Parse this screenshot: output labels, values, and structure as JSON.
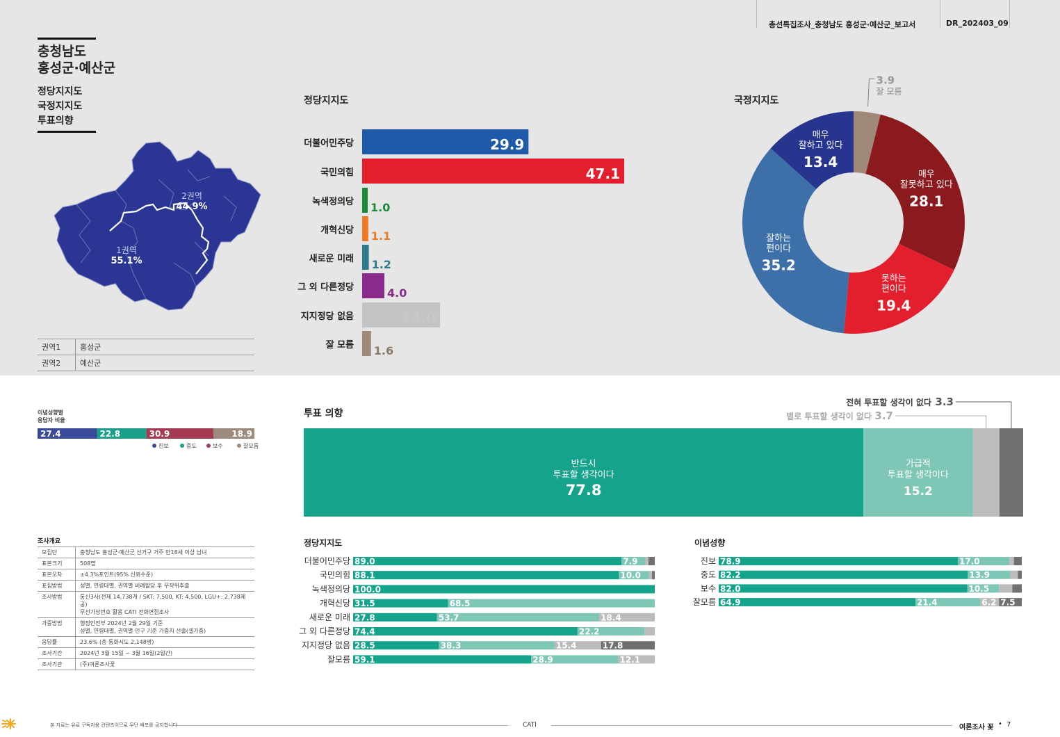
{
  "header": {
    "report_title": "총선특집조사_충청남도 홍성군·예산군_보고서",
    "report_code": "DR_202403_09"
  },
  "page_title": {
    "line1": "충청남도",
    "line2": "홍성군·예산군",
    "sub1": "정당지지도",
    "sub2": "국정지지도",
    "sub3": "투표의향"
  },
  "map": {
    "region1_label": "1권역",
    "region1_value": "55.1%",
    "region2_label": "2권역",
    "region2_value": "44.9%",
    "fill_color": "#2b3593",
    "table": [
      {
        "key": "권역1",
        "value": "홍성군"
      },
      {
        "key": "권역2",
        "value": "예산군"
      }
    ]
  },
  "ideology_ratio": {
    "title_line1": "이념성향별",
    "title_line2": "응답자 비율",
    "segments": [
      {
        "name": "진보",
        "value": 27.4,
        "label": "27.4",
        "color": "#3a4a9a"
      },
      {
        "name": "중도",
        "value": 22.8,
        "label": "22.8",
        "color": "#1aa08a"
      },
      {
        "name": "보수",
        "value": 30.9,
        "label": "30.9",
        "color": "#a33a52"
      },
      {
        "name": "잘모름",
        "value": 18.9,
        "label": "18.9",
        "color": "#9c8a7c"
      }
    ]
  },
  "survey": {
    "title": "조사개요",
    "rows": [
      {
        "key": "모집단",
        "value": "충청남도 홍성군·예산군 선거구 거주 만18세 이상 남녀"
      },
      {
        "key": "표본크기",
        "value": "508명"
      },
      {
        "key": "표본오차",
        "value": "±4.3%포인트(95% 신뢰수준)"
      },
      {
        "key": "표집방법",
        "value": "성별, 연령대별, 권역별 비례할당 후 무작위추출"
      },
      {
        "key": "조사방법",
        "value": "통신3사(전체 14,738개 / SKT: 7,500, KT: 4,500, LGU+: 2,738제공)",
        "value2": "무선가상번호 활용 CATI 전화면접조사"
      },
      {
        "key": "가중방법",
        "value": "행정안전부 2024년 2월 29일 기준",
        "value2": "성별, 연령대별, 권역별 인구 기준 가중치 산출(셀가중)"
      },
      {
        "key": "응답률",
        "value": "23.6% (총 통화시도 2,148명)"
      },
      {
        "key": "조사기간",
        "value": "2024년 3월 15일 ~ 3월 16일(2일간)"
      },
      {
        "key": "조사기관",
        "value": "(주)여론조사꽃"
      }
    ]
  },
  "footer": {
    "notice": "본 자료는 유료 구독자용 컨텐츠이므로 무단 배포를 금지합니다",
    "method": "CATI",
    "brand": "여론조사 꽃",
    "page": "7"
  },
  "chart_data": [
    {
      "type": "bar",
      "orientation": "horizontal",
      "title": "정당지지도",
      "categories": [
        "더불어민주당",
        "국민의힘",
        "녹색정의당",
        "개혁신당",
        "새로운 미래",
        "그 외 다른정당",
        "지지정당 없음",
        "잘 모름"
      ],
      "values": [
        29.9,
        47.1,
        1.0,
        1.1,
        1.2,
        4.0,
        14.0,
        1.6
      ],
      "labels": [
        "29.9",
        "47.1",
        "1.0",
        "1.1",
        "1.2",
        "4.0",
        "14.0",
        "1.6"
      ],
      "colors": [
        "#1e5aa8",
        "#e31e2d",
        "#1a8a3a",
        "#f07a22",
        "#2f7a8a",
        "#8a2a8a",
        "#c4c4c4",
        "#9c8a7c"
      ],
      "label_colors": [
        "#ffffff",
        "#ffffff",
        "#1a8a3a",
        "#f07a22",
        "#2f7a8a",
        "#8a2a8a",
        "#c8c8c8",
        "#8a7a6a"
      ]
    },
    {
      "type": "pie",
      "donut": true,
      "title": "국정지지도",
      "slices": [
        {
          "name_lines": [
            "잘 모름"
          ],
          "value": 3.9,
          "label": "3.9",
          "color": "#a08878"
        },
        {
          "name_lines": [
            "매우",
            "잘못하고 있다"
          ],
          "value": 28.1,
          "label": "28.1",
          "color": "#8b1a1f"
        },
        {
          "name_lines": [
            "못하는",
            "편이다"
          ],
          "value": 19.4,
          "label": "19.4",
          "color": "#e31e2d"
        },
        {
          "name_lines": [
            "잘하는",
            "편이다"
          ],
          "value": 35.2,
          "label": "35.2",
          "color": "#3d6fa8"
        },
        {
          "name_lines": [
            "매우",
            "잘하고 있다"
          ],
          "value": 13.4,
          "label": "13.4",
          "color": "#27358f"
        }
      ]
    },
    {
      "type": "bar",
      "stacked": true,
      "orientation": "horizontal",
      "title": "투표 의향",
      "segments": [
        {
          "name_lines": [
            "반드시",
            "투표할 생각이다"
          ],
          "value": 77.8,
          "label": "77.8",
          "color": "#16a38c"
        },
        {
          "name_lines": [
            "가급적",
            "투표할 생각이다"
          ],
          "value": 15.2,
          "label": "15.2",
          "color": "#7ec6b6"
        },
        {
          "name": "별로 투표할 생각이 없다",
          "value": 3.7,
          "label": "3.7",
          "color": "#bcbcbc"
        },
        {
          "name": "전혀 투표할 생각이 없다",
          "value": 3.3,
          "label": "3.3",
          "color": "#707070"
        }
      ]
    },
    {
      "type": "bar",
      "stacked": true,
      "orientation": "horizontal",
      "title": "정당지지도",
      "colors": [
        "#16a38c",
        "#7ec6b6",
        "#bcbcbc",
        "#707070"
      ],
      "categories": [
        "더불어민주당",
        "국민의힘",
        "녹색정의당",
        "개혁신당",
        "새로운 미래",
        "그 외 다른정당",
        "지지정당 없음",
        "잘모름"
      ],
      "rows": [
        [
          89.0,
          7.9,
          1.0,
          2.1
        ],
        [
          88.1,
          10.0,
          1.0,
          0.9
        ],
        [
          100.0,
          0,
          0,
          0
        ],
        [
          31.5,
          68.5,
          0,
          0
        ],
        [
          27.8,
          53.7,
          18.4,
          0
        ],
        [
          74.4,
          22.2,
          3.4,
          0
        ],
        [
          28.5,
          38.3,
          15.4,
          17.8
        ],
        [
          59.1,
          28.9,
          12.1,
          0
        ]
      ],
      "row_labels": [
        [
          "89.0",
          "7.9",
          "",
          ""
        ],
        [
          "88.1",
          "10.0",
          "",
          ""
        ],
        [
          "100.0",
          "",
          "",
          ""
        ],
        [
          "31.5",
          "68.5",
          "",
          ""
        ],
        [
          "27.8",
          "53.7",
          "18.4",
          ""
        ],
        [
          "74.4",
          "22.2",
          "",
          ""
        ],
        [
          "28.5",
          "38.3",
          "15.4",
          "17.8"
        ],
        [
          "59.1",
          "28.9",
          "12.1",
          ""
        ]
      ]
    },
    {
      "type": "bar",
      "stacked": true,
      "orientation": "horizontal",
      "title": "이념성향",
      "colors": [
        "#16a38c",
        "#7ec6b6",
        "#bcbcbc",
        "#707070"
      ],
      "categories": [
        "진보",
        "중도",
        "보수",
        "잘모름"
      ],
      "rows": [
        [
          78.9,
          17.0,
          1.5,
          2.6
        ],
        [
          82.2,
          13.9,
          2.6,
          1.3
        ],
        [
          82.0,
          10.5,
          4.4,
          3.1
        ],
        [
          64.9,
          21.4,
          6.2,
          7.5
        ]
      ],
      "row_labels": [
        [
          "78.9",
          "17.0",
          "",
          ""
        ],
        [
          "82.2",
          "13.9",
          "",
          ""
        ],
        [
          "82.0",
          "10.5",
          "",
          ""
        ],
        [
          "64.9",
          "21.4",
          "6.2",
          "7.5"
        ]
      ]
    }
  ]
}
